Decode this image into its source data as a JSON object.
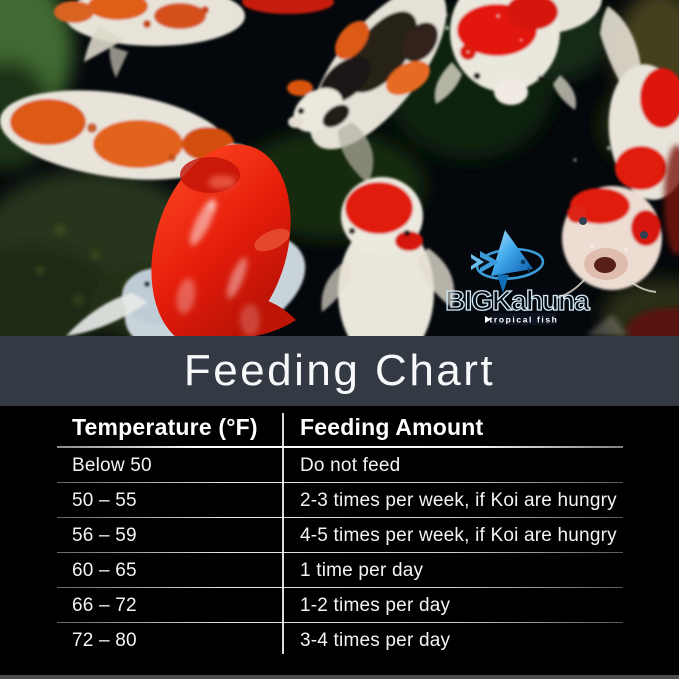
{
  "photo": {
    "description": "Koi fish swimming in a dark pond",
    "palette": {
      "water": "#05070b",
      "koi_white": "#e9e5da",
      "koi_orange": "#df5f18",
      "koi_red": "#e01c10",
      "moss_green": "#26351b"
    }
  },
  "logo": {
    "name": "BIGKahuna",
    "tagline": "tropical fish",
    "accent_blue": "#3b9bd8"
  },
  "banner": {
    "title": "Feeding Chart",
    "background": "#333a43"
  },
  "table": {
    "headers": [
      "Temperature (°F)",
      "Feeding Amount"
    ],
    "rows": [
      [
        "Below 50",
        "Do not feed"
      ],
      [
        "50 – 55",
        "2-3 times per week, if Koi are hungry"
      ],
      [
        "56 – 59",
        "4-5 times per week, if Koi are hungry"
      ],
      [
        "60 – 65",
        "1 time per day"
      ],
      [
        "66 – 72",
        "1-2 times per day"
      ],
      [
        "72 – 80",
        "3-4 times per day"
      ]
    ]
  }
}
